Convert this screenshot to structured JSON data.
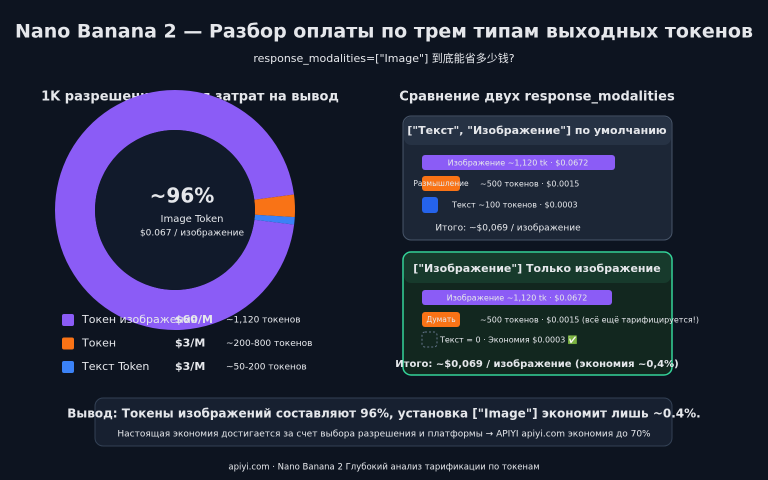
{
  "title": "Nano Banana 2 — Разбор оплаты по трем типам выходных токенов",
  "subtitle": "response_modalities=[\"Image\"] 到底能省多少钱?",
  "chart_data": {
    "type": "pie",
    "title": "1K разрешение · Доля затрат на вывод",
    "center_value": "~96%",
    "center_label": "Image Token",
    "center_note": "$0.067 / изображение",
    "categories": [
      "Токен изображения",
      "Токен",
      "Текст Token"
    ],
    "values": [
      96,
      3,
      1
    ],
    "colors": [
      "#8b5cf6",
      "#f97316",
      "#3b82f6"
    ],
    "prices": [
      "$60/M",
      "$3/M",
      "$3/M"
    ],
    "token_counts": [
      "~1,120 токенов",
      "~200-800 токенов",
      "~50-200 токенов"
    ]
  },
  "comparison": {
    "title": "Сравнение двух response_modalities",
    "default": {
      "title": "[\"Текст\", \"Изображение\"] по умолчанию",
      "image_bar": "Изображение ~1,120 tk · $0.0672",
      "thinking_bar": "Размышление",
      "thinking_detail": "~500 токенов · $0.0015",
      "text_detail": "Текст ~100 токенов · $0.0003",
      "total": "Итого: ~$0,069 / изображение"
    },
    "image_only": {
      "title": "[\"Изображение\"] Только изображение",
      "image_bar": "Изображение ~1,120 tk · $0.0672",
      "thinking_bar": "Думать",
      "thinking_detail": "~500 токенов · $0.0015 (всё ещё тарифицируется!)",
      "text_detail": "Текст = 0 · Экономия $0.0003 ✅",
      "total": "Итого: ~$0,069 / изображение (экономия ~0,4%)"
    }
  },
  "conclusion": {
    "text": "Вывод: Токены изображений составляют 96%, установка [\"Image\"] экономит лишь ~0.4%.",
    "note": "Настоящая экономия достигается за счет выбора разрешения и платформы → APIYI apiyi.com экономия до 70%"
  },
  "footer": "apiyi.com · Nano Banana 2 Глубокий анализ тарификации по токенам"
}
